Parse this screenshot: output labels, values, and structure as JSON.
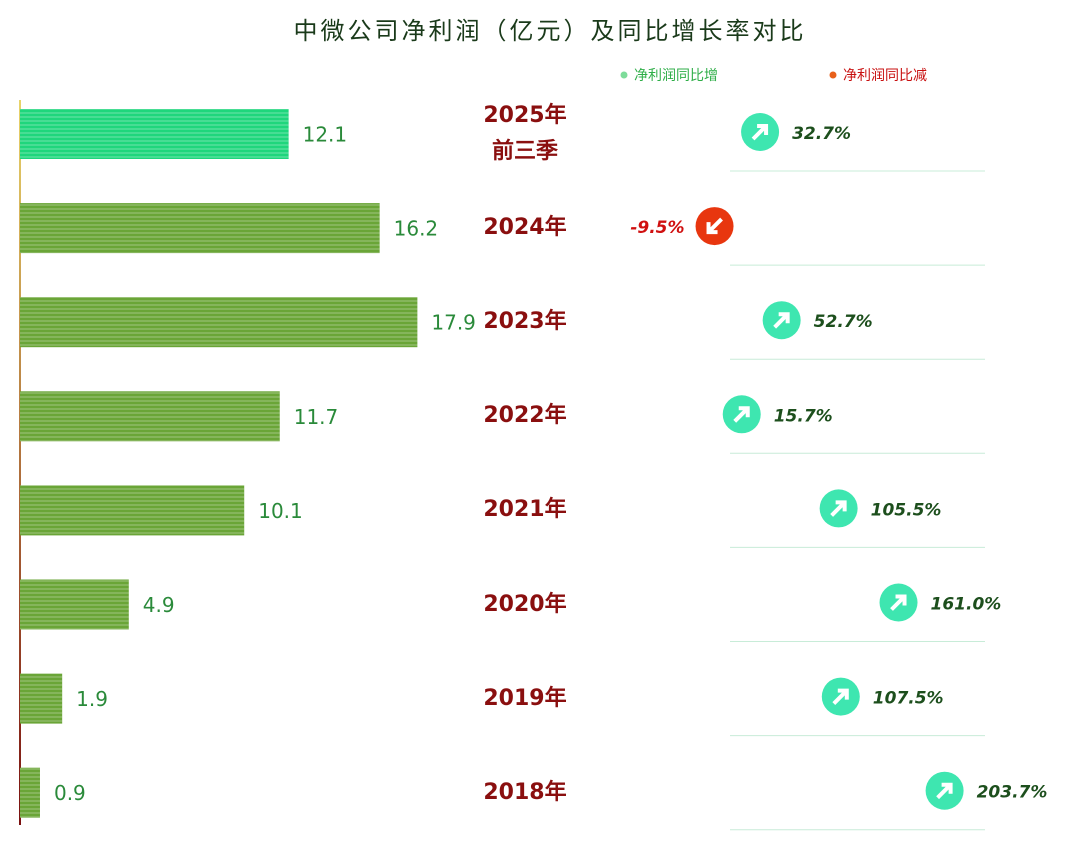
{
  "chart_data": {
    "type": "bar-growth",
    "title": "中微公司净利润（亿元）及同比增长率对比",
    "legend": [
      "净利润同比增",
      "净利润同比减"
    ],
    "categories": [
      "2025年\n前三季",
      "2024年",
      "2023年",
      "2022年",
      "2021年",
      "2020年",
      "2019年",
      "2018年"
    ],
    "values": [
      12.1,
      16.2,
      17.9,
      11.7,
      10.1,
      4.9,
      1.9,
      0.9
    ],
    "bar_colors": [
      "#1fd67c",
      "#6aa537",
      "#6aa537",
      "#6aa537",
      "#6aa537",
      "#6aa537",
      "#6aa537",
      "#6aa537"
    ],
    "xlim": [
      0,
      20
    ],
    "growth": [
      32.7,
      -9.5,
      52.7,
      15.7,
      105.5,
      161.0,
      107.5,
      203.7
    ],
    "growth_labels": [
      "32.7%",
      "-9.5%",
      "52.7%",
      "15.7%",
      "105.5%",
      "161.0%",
      "107.5%",
      "203.7%"
    ],
    "growth_lim": [
      -10,
      210
    ],
    "up_color": "#3ee6b0",
    "down_color": "#e8360f"
  }
}
